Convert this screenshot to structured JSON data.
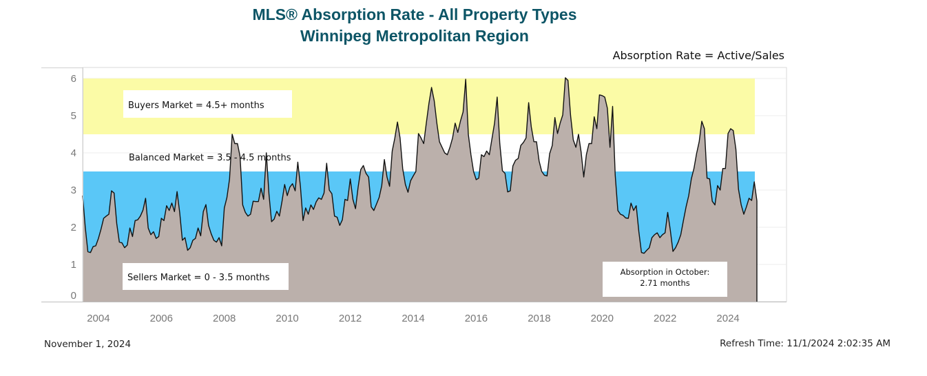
{
  "header": {
    "title_line1": "MLS® Absorption Rate - All Property Types",
    "title_line2": "Winnipeg Metropolitan Region",
    "formula": "Absorption Rate = Active/Sales"
  },
  "footer": {
    "date": "November 1, 2024",
    "refresh": "Refresh Time: 11/1/2024 2:02:35 AM"
  },
  "colors": {
    "area_fill": "#bbb0ab",
    "line": "#111111",
    "buyers_zone": "#fbfba6",
    "sellers_zone": "#5ac7f7",
    "title": "#0d5566"
  },
  "chart_data": {
    "type": "area",
    "title": "MLS® Absorption Rate - All Property Types",
    "subtitle": "Winnipeg Metropolitan Region",
    "xlabel": "",
    "ylabel": "",
    "x_range": [
      2003.5,
      2024.85
    ],
    "ylim": [
      0,
      6
    ],
    "y_ticks": [
      "0",
      "1",
      "2",
      "3",
      "4",
      "5",
      "6"
    ],
    "x_ticks": [
      "2004",
      "2006",
      "2008",
      "2010",
      "2012",
      "2014",
      "2016",
      "2018",
      "2020",
      "2022",
      "2024"
    ],
    "zones": [
      {
        "name": "Sellers Market",
        "label": "Sellers Market = 0 - 3.5 months",
        "from": 0,
        "to": 3.5,
        "color": "#5ac7f7"
      },
      {
        "name": "Balanced Market",
        "label": "Balanced Market = 3.5 - 4.5 months",
        "from": 3.5,
        "to": 4.5,
        "color": "#ffffff"
      },
      {
        "name": "Buyers Market",
        "label": "Buyers Market = 4.5+ months",
        "from": 4.5,
        "to": 6.0,
        "color": "#fbfba6"
      }
    ],
    "annotation": {
      "line1": "Absorption in October:",
      "line2": "2.71 months",
      "value": 2.71
    },
    "series": [
      {
        "x_start": 2003.5,
        "x_step": 0.08333,
        "values": [
          2.85,
          2.0,
          1.34,
          1.32,
          1.48,
          1.5,
          1.7,
          1.95,
          2.24,
          2.3,
          2.35,
          2.98,
          2.92,
          2.1,
          1.6,
          1.58,
          1.45,
          1.52,
          1.98,
          1.75,
          2.18,
          2.2,
          2.3,
          2.46,
          2.78,
          1.98,
          1.8,
          1.88,
          1.7,
          1.75,
          2.24,
          2.18,
          2.58,
          2.45,
          2.65,
          2.42,
          2.96,
          2.4,
          1.65,
          1.72,
          1.38,
          1.45,
          1.65,
          1.7,
          1.98,
          1.77,
          2.42,
          2.61,
          2.05,
          1.82,
          1.65,
          1.6,
          1.72,
          1.5,
          2.52,
          2.8,
          3.3,
          4.5,
          4.25,
          4.25,
          3.9,
          2.6,
          2.4,
          2.3,
          2.35,
          2.7,
          2.69,
          2.69,
          3.05,
          2.75,
          4.0,
          2.9,
          2.15,
          2.22,
          2.43,
          2.3,
          2.7,
          3.15,
          2.85,
          3.08,
          3.17,
          2.98,
          3.75,
          3.1,
          2.18,
          2.52,
          2.35,
          2.6,
          2.48,
          2.68,
          2.79,
          2.75,
          2.92,
          3.72,
          3.0,
          2.9,
          2.3,
          2.27,
          2.05,
          2.2,
          2.75,
          2.72,
          3.3,
          2.75,
          2.5,
          3.08,
          3.55,
          3.66,
          3.45,
          3.35,
          2.55,
          2.45,
          2.62,
          2.8,
          3.12,
          3.82,
          3.35,
          3.1,
          4.05,
          4.4,
          4.83,
          4.4,
          3.58,
          3.15,
          2.94,
          3.25,
          3.38,
          3.5,
          4.52,
          4.4,
          4.25,
          4.8,
          5.33,
          5.76,
          5.4,
          4.8,
          4.3,
          4.15,
          4.0,
          3.95,
          4.15,
          4.4,
          4.8,
          4.55,
          4.85,
          5.1,
          5.98,
          4.5,
          3.95,
          3.5,
          3.28,
          3.32,
          3.95,
          3.9,
          4.05,
          3.95,
          4.38,
          4.8,
          5.5,
          4.25,
          3.52,
          3.45,
          2.95,
          2.98,
          3.65,
          3.8,
          3.85,
          4.2,
          4.28,
          4.4,
          5.35,
          4.7,
          4.3,
          4.3,
          3.78,
          3.5,
          3.4,
          3.38,
          3.98,
          4.2,
          4.95,
          4.52,
          4.8,
          5.02,
          6.02,
          5.95,
          5.0,
          4.35,
          4.15,
          4.5,
          4.02,
          3.35,
          3.95,
          4.25,
          4.25,
          4.97,
          4.65,
          5.56,
          5.54,
          5.5,
          5.2,
          4.15,
          5.25,
          3.4,
          2.45,
          2.35,
          2.32,
          2.25,
          2.24,
          2.65,
          2.45,
          2.58,
          1.88,
          1.32,
          1.3,
          1.38,
          1.45,
          1.72,
          1.8,
          1.85,
          1.72,
          1.8,
          1.85,
          2.4,
          1.92,
          1.35,
          1.45,
          1.6,
          1.8,
          2.18,
          2.55,
          2.85,
          3.3,
          3.58,
          3.98,
          4.3,
          4.85,
          4.65,
          3.32,
          3.3,
          2.7,
          2.6,
          3.12,
          3.0,
          3.58,
          3.58,
          4.52,
          4.65,
          4.6,
          4.1,
          3.02,
          2.6,
          2.35,
          2.55,
          2.78,
          2.72,
          3.22,
          2.71
        ]
      }
    ]
  }
}
